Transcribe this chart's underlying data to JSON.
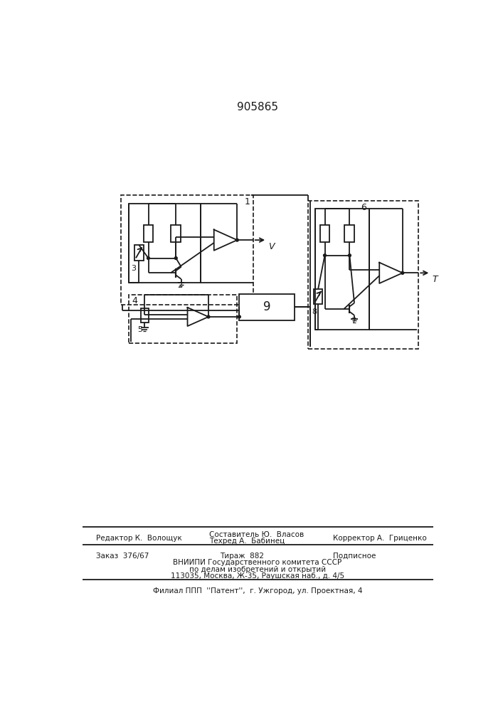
{
  "title": "905865",
  "bg_color": "#ffffff",
  "line_color": "#1a1a1a",
  "footer": {
    "editor": "Редактор К.  Волощук",
    "composer": "Составитель Ю.  Власов",
    "techred": "Техред А.  Бабинец",
    "corrector": "Корректор А.  Гриценко",
    "order": "Заказ  376/67",
    "tirazh": "Тираж  882",
    "podpisnoe": "Подписное",
    "vniip1": "ВНИИПИ Государственного комитета СССР",
    "vniip2": "по делам изобретений и открытий",
    "vniip3": "113035, Москва, Ж-35, Раушская наб., д. 4/5",
    "filial": "Филиал ППП  ''Патент'',  г. Ужгород, ул. Проектная, 4"
  }
}
